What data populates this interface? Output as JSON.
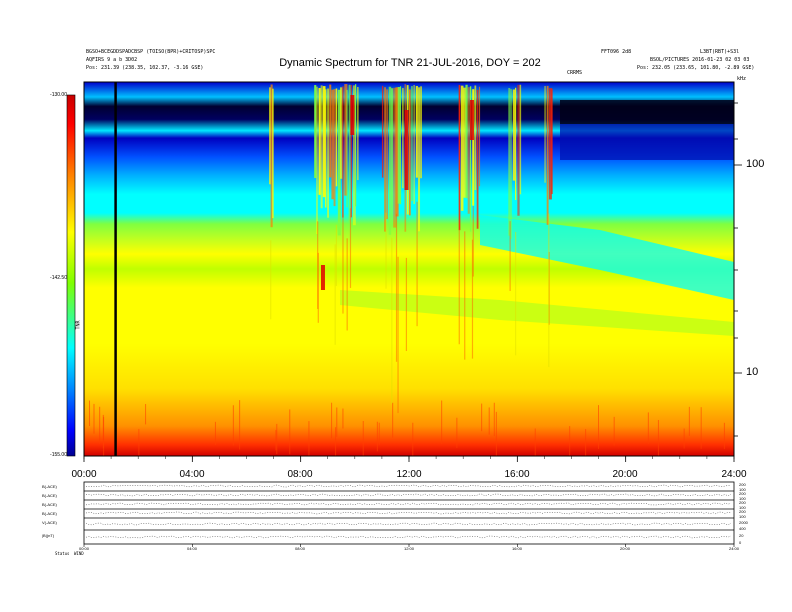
{
  "header": {
    "title": "Dynamic Spectrum for TNR 21-JUL-2016, DOY = 202",
    "left_line1": "BGSO+BCEGDDSPADCBSP (TOISO(BPR)+CRITOSP)SPC",
    "left_line2": "AQFIRS 9 a b 3D02",
    "left_line3": "Pos:   231.39 (238.35, 102.37, -3.16 GSE)",
    "right_line1a": "FFT096 2d8",
    "right_line1b": "L3BT(RBT)+S3l",
    "right_line2": "BSOL/PICTURES 2016-01-23 02 03 03",
    "right_line3": "Pos:   232.05 (233.65, 101.80, -2.89 GSE)",
    "marker_label": "CRRMS",
    "corner_label": "kHz"
  },
  "colorbar": {
    "top_label": "-130.00",
    "mid_label": "-142.50",
    "bottom_label": "-155.00",
    "axis_label": "TNR",
    "colors": [
      "#c80000",
      "#ff0000",
      "#ff8000",
      "#ffff00",
      "#80ff00",
      "#00ffff",
      "#0080ff",
      "#0000ff",
      "#000090"
    ]
  },
  "freq_axis": {
    "label_100": "100",
    "label_10": "10"
  },
  "time_axis": [
    "00:00",
    "04:00",
    "08:00",
    "12:00",
    "16:00",
    "20:00",
    "24:00"
  ],
  "panels": {
    "left_labels": [
      "B(-ACE)",
      "B(-ACE)",
      "B(-ACE)",
      "B(-ACE)",
      "V(-ACE)",
      "|B|(nT)"
    ],
    "right_labels": [
      "200",
      "100",
      "200",
      "100",
      "200",
      "100",
      "200",
      "100",
      "2000",
      "400",
      "20",
      "0"
    ],
    "bottom_label1": "Status",
    "bottom_label2": "WIND",
    "time_labels": [
      "00:00",
      "04:00",
      "08:00",
      "12:00",
      "16:00",
      "20:00",
      "24:00"
    ]
  },
  "chart_data": {
    "type": "heatmap",
    "title": "Dynamic Spectrum for TNR 21-JUL-2016, DOY = 202",
    "x_range": [
      "00:00",
      "24:00"
    ],
    "x_ticks": [
      "00:00",
      "04:00",
      "08:00",
      "12:00",
      "16:00",
      "20:00",
      "24:00"
    ],
    "y_scale": "log",
    "y_ticks": [
      10,
      100
    ],
    "y_unit": "kHz",
    "colorbar_range": [
      -155,
      -130
    ],
    "colorbar_ticks": [
      -130,
      -142.5,
      -155
    ],
    "bands_top_to_bottom": [
      "dark blue / black (interference lines)",
      "blue",
      "cyan",
      "green-yellow",
      "yellow",
      "orange-red (lowest frequencies)"
    ],
    "bursts": [
      {
        "start": "06:50",
        "end": "07:00"
      },
      {
        "start": "08:30",
        "end": "10:10"
      },
      {
        "start": "11:00",
        "end": "12:30"
      },
      {
        "start": "13:50",
        "end": "14:40"
      },
      {
        "start": "15:40",
        "end": "16:10"
      },
      {
        "start": "17:00",
        "end": "17:20"
      }
    ],
    "vertical_marker": "01:10"
  }
}
